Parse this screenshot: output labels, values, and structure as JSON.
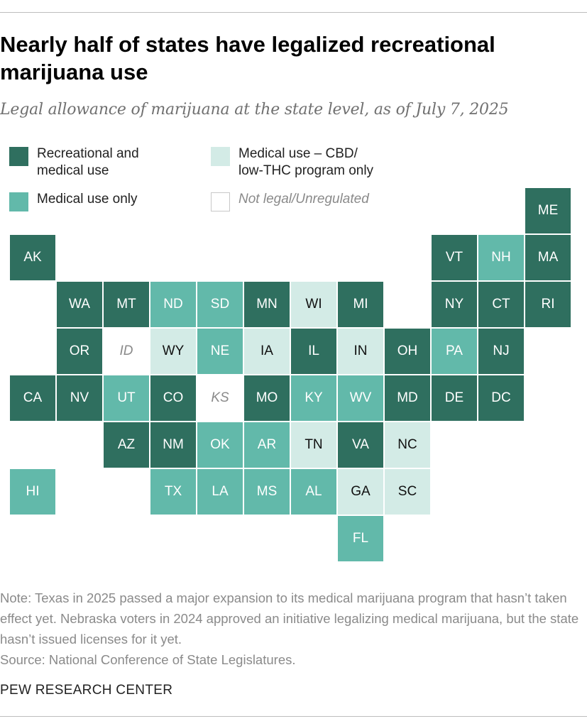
{
  "title": "Nearly half of states have legalized recreational marijuana use",
  "subtitle": "Legal allowance of marijuana at the state level, as of July 7, 2025",
  "legend": {
    "recreational": {
      "line1": "Recreational and",
      "line2": "medical use",
      "color": "#2f6f5f"
    },
    "medical": {
      "label": "Medical use only",
      "color": "#62b9aa"
    },
    "cbd": {
      "line1": "Medical use – CBD/",
      "line2": "low-THC program only",
      "color": "#d3ebe6"
    },
    "not_legal": {
      "label": "Not legal/Unregulated",
      "color": "#ffffff"
    }
  },
  "states": [
    {
      "abbr": "ME",
      "category": "rec",
      "row": 0,
      "col": 11
    },
    {
      "abbr": "AK",
      "category": "rec",
      "row": 1,
      "col": 0
    },
    {
      "abbr": "VT",
      "category": "rec",
      "row": 1,
      "col": 9
    },
    {
      "abbr": "NH",
      "category": "med",
      "row": 1,
      "col": 10
    },
    {
      "abbr": "MA",
      "category": "rec",
      "row": 1,
      "col": 11
    },
    {
      "abbr": "WA",
      "category": "rec",
      "row": 2,
      "col": 1
    },
    {
      "abbr": "MT",
      "category": "rec",
      "row": 2,
      "col": 2
    },
    {
      "abbr": "ND",
      "category": "med",
      "row": 2,
      "col": 3
    },
    {
      "abbr": "SD",
      "category": "med",
      "row": 2,
      "col": 4
    },
    {
      "abbr": "MN",
      "category": "rec",
      "row": 2,
      "col": 5
    },
    {
      "abbr": "WI",
      "category": "cbd",
      "row": 2,
      "col": 6
    },
    {
      "abbr": "MI",
      "category": "rec",
      "row": 2,
      "col": 7
    },
    {
      "abbr": "NY",
      "category": "rec",
      "row": 2,
      "col": 9
    },
    {
      "abbr": "CT",
      "category": "rec",
      "row": 2,
      "col": 10
    },
    {
      "abbr": "RI",
      "category": "rec",
      "row": 2,
      "col": 11
    },
    {
      "abbr": "OR",
      "category": "rec",
      "row": 3,
      "col": 1
    },
    {
      "abbr": "ID",
      "category": "none",
      "row": 3,
      "col": 2
    },
    {
      "abbr": "WY",
      "category": "cbd",
      "row": 3,
      "col": 3
    },
    {
      "abbr": "NE",
      "category": "med",
      "row": 3,
      "col": 4
    },
    {
      "abbr": "IA",
      "category": "cbd",
      "row": 3,
      "col": 5
    },
    {
      "abbr": "IL",
      "category": "rec",
      "row": 3,
      "col": 6
    },
    {
      "abbr": "IN",
      "category": "cbd",
      "row": 3,
      "col": 7
    },
    {
      "abbr": "OH",
      "category": "rec",
      "row": 3,
      "col": 8
    },
    {
      "abbr": "PA",
      "category": "med",
      "row": 3,
      "col": 9
    },
    {
      "abbr": "NJ",
      "category": "rec",
      "row": 3,
      "col": 10
    },
    {
      "abbr": "CA",
      "category": "rec",
      "row": 4,
      "col": 0
    },
    {
      "abbr": "NV",
      "category": "rec",
      "row": 4,
      "col": 1
    },
    {
      "abbr": "UT",
      "category": "med",
      "row": 4,
      "col": 2
    },
    {
      "abbr": "CO",
      "category": "rec",
      "row": 4,
      "col": 3
    },
    {
      "abbr": "KS",
      "category": "none",
      "row": 4,
      "col": 4
    },
    {
      "abbr": "MO",
      "category": "rec",
      "row": 4,
      "col": 5
    },
    {
      "abbr": "KY",
      "category": "med",
      "row": 4,
      "col": 6
    },
    {
      "abbr": "WV",
      "category": "med",
      "row": 4,
      "col": 7
    },
    {
      "abbr": "MD",
      "category": "rec",
      "row": 4,
      "col": 8
    },
    {
      "abbr": "DE",
      "category": "rec",
      "row": 4,
      "col": 9
    },
    {
      "abbr": "DC",
      "category": "rec",
      "row": 4,
      "col": 10
    },
    {
      "abbr": "AZ",
      "category": "rec",
      "row": 5,
      "col": 2
    },
    {
      "abbr": "NM",
      "category": "rec",
      "row": 5,
      "col": 3
    },
    {
      "abbr": "OK",
      "category": "med",
      "row": 5,
      "col": 4
    },
    {
      "abbr": "AR",
      "category": "med",
      "row": 5,
      "col": 5
    },
    {
      "abbr": "TN",
      "category": "cbd",
      "row": 5,
      "col": 6
    },
    {
      "abbr": "VA",
      "category": "rec",
      "row": 5,
      "col": 7
    },
    {
      "abbr": "NC",
      "category": "cbd",
      "row": 5,
      "col": 8
    },
    {
      "abbr": "HI",
      "category": "med",
      "row": 6,
      "col": 0
    },
    {
      "abbr": "TX",
      "category": "med",
      "row": 6,
      "col": 3
    },
    {
      "abbr": "LA",
      "category": "med",
      "row": 6,
      "col": 4
    },
    {
      "abbr": "MS",
      "category": "med",
      "row": 6,
      "col": 5
    },
    {
      "abbr": "AL",
      "category": "med",
      "row": 6,
      "col": 6
    },
    {
      "abbr": "GA",
      "category": "cbd",
      "row": 6,
      "col": 7
    },
    {
      "abbr": "SC",
      "category": "cbd",
      "row": 6,
      "col": 8
    },
    {
      "abbr": "FL",
      "category": "med",
      "row": 7,
      "col": 7
    }
  ],
  "note": {
    "line1": "Note: Texas in 2025 passed a major expansion to its medical marijuana program that hasn’t taken effect yet. Nebraska voters in 2024 approved an initiative legalizing medical marijuana, but the state hasn’t issued licenses for it yet.",
    "source": "Source: National Conference of State Legislatures."
  },
  "footer": "PEW RESEARCH CENTER"
}
